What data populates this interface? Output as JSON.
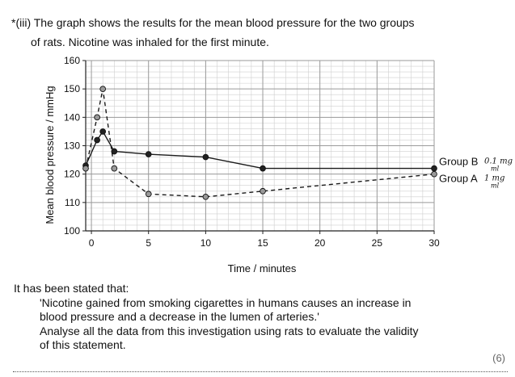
{
  "question": {
    "line1": "*(iii) The graph shows the results for the mean blood pressure for the two groups",
    "line2": "of rats. Nicotine was inhaled for the first minute."
  },
  "chart_data": {
    "type": "line",
    "title": "",
    "xlabel": "Time / minutes",
    "ylabel": "Mean blood pressure / mmHg",
    "xlim": [
      -0.5,
      30
    ],
    "ylim": [
      100,
      160
    ],
    "x_ticks": [
      0,
      5,
      10,
      15,
      20,
      25,
      30
    ],
    "y_ticks": [
      100,
      110,
      120,
      130,
      140,
      150,
      160
    ],
    "grid": true,
    "series": [
      {
        "name": "Group B",
        "line_style": "solid",
        "marker_color": "#222222",
        "x": [
          -0.5,
          0.5,
          1,
          2,
          5,
          10,
          15,
          30
        ],
        "y": [
          123,
          132,
          135,
          128,
          127,
          126,
          122,
          122
        ]
      },
      {
        "name": "Group A",
        "line_style": "dashed",
        "marker_color": "#999999",
        "x": [
          -0.5,
          0.5,
          1,
          2,
          5,
          10,
          15,
          30
        ],
        "y": [
          122,
          140,
          150,
          122,
          113,
          112,
          114,
          120
        ]
      }
    ],
    "series_labels": [
      {
        "name": "Group B",
        "handwritten_note": "0.1 mg\nml"
      },
      {
        "name": "Group A",
        "handwritten_note": "1 mg\nml"
      }
    ]
  },
  "body": {
    "intro": "It has been stated that:",
    "quote_line1": "'Nicotine gained from smoking cigarettes in humans causes an increase in",
    "quote_line2": "blood pressure and a decrease in the lumen of arteries.'",
    "task_line1": "Analyse all the data from this investigation using rats to evaluate the validity",
    "task_line2": "of this statement.",
    "marks": "(6)"
  }
}
